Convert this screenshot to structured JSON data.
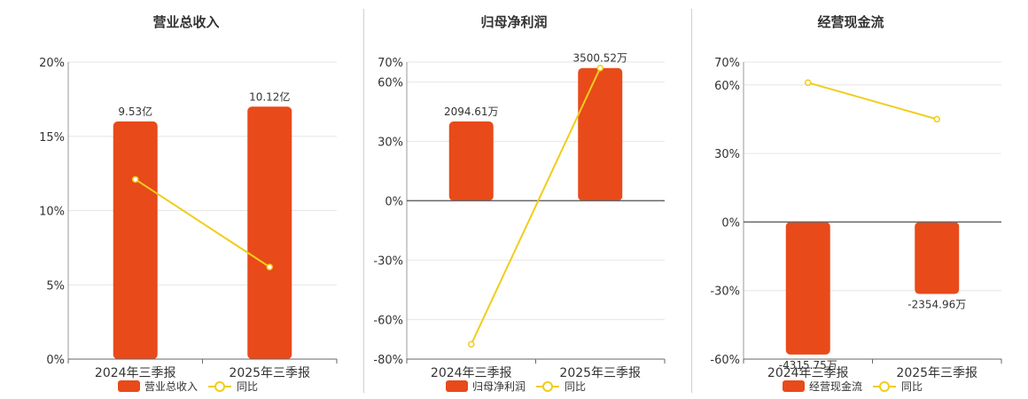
{
  "colors": {
    "bar": "#e84a1a",
    "line": "#f0cd1b",
    "axis": "#333333",
    "grid": "#e6e6e6",
    "text": "#333333"
  },
  "chart_data": [
    {
      "type": "bar",
      "title": "营业总收入",
      "categories": [
        "2024年三季报",
        "2025年三季报"
      ],
      "ylim": [
        0,
        20
      ],
      "yticks": [
        "0%",
        "5%",
        "10%",
        "15%",
        "20%"
      ],
      "series": [
        {
          "name": "营业总收入",
          "kind": "bar",
          "values": [
            16.0,
            17.0
          ],
          "labels": [
            "9.53亿",
            "10.12亿"
          ]
        },
        {
          "name": "同比",
          "kind": "line",
          "values": [
            12.1,
            6.2
          ]
        }
      ],
      "legend": "bottom",
      "grid": true
    },
    {
      "type": "bar",
      "title": "归母净利润",
      "categories": [
        "2024年三季报",
        "2025年三季报"
      ],
      "ylim": [
        -80,
        70
      ],
      "yticks": [
        "-80%",
        "-60%",
        "-30%",
        "0%",
        "30%",
        "60%",
        "70%"
      ],
      "series": [
        {
          "name": "归母净利润",
          "kind": "bar",
          "values": [
            40.0,
            67.0
          ],
          "labels": [
            "2094.61万",
            "3500.52万"
          ]
        },
        {
          "name": "同比",
          "kind": "line",
          "values": [
            -72.5,
            67.0
          ]
        }
      ],
      "legend": "bottom",
      "grid": true
    },
    {
      "type": "bar",
      "title": "经营现金流",
      "categories": [
        "2024年三季报",
        "2025年三季报"
      ],
      "ylim": [
        -60,
        70
      ],
      "yticks": [
        "-60%",
        "-30%",
        "0%",
        "30%",
        "60%",
        "70%"
      ],
      "series": [
        {
          "name": "经营现金流",
          "kind": "bar",
          "values": [
            -58.0,
            -31.5
          ],
          "labels": [
            "-4315.75万",
            "-2354.96万"
          ]
        },
        {
          "name": "同比",
          "kind": "line",
          "values": [
            61.0,
            45.0
          ]
        }
      ],
      "legend": "bottom",
      "grid": true
    }
  ]
}
